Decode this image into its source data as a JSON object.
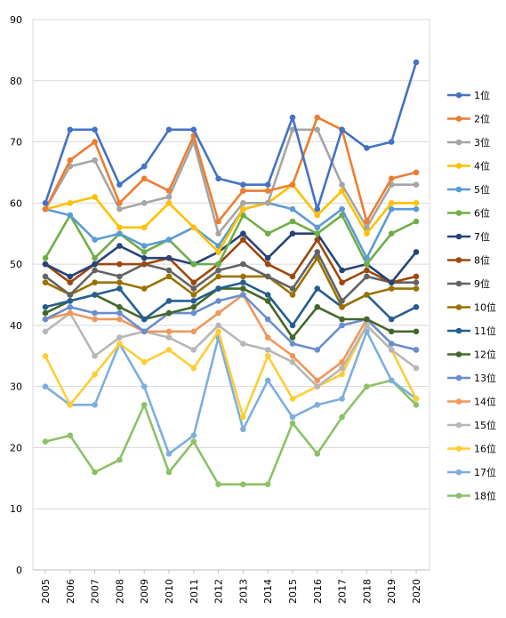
{
  "chart_data": {
    "type": "line",
    "title": "",
    "xlabel": "",
    "ylabel": "",
    "x": [
      "2005",
      "2006",
      "2007",
      "2008",
      "2009",
      "2010",
      "2011",
      "2012",
      "2013",
      "2014",
      "2015",
      "2016",
      "2017",
      "2018",
      "2019",
      "2020"
    ],
    "ylim": [
      0,
      90
    ],
    "yticks": [
      0,
      10,
      20,
      30,
      40,
      50,
      60,
      70,
      80,
      90
    ],
    "grid": "horizontal",
    "legend": "right",
    "series": [
      {
        "name": "1位",
        "color": "#4472C4",
        "values": [
          60,
          72,
          72,
          63,
          66,
          72,
          72,
          64,
          63,
          63,
          74,
          59,
          72,
          69,
          70,
          83
        ]
      },
      {
        "name": "2位",
        "color": "#ED7D31",
        "values": [
          59,
          67,
          70,
          60,
          64,
          62,
          71,
          57,
          62,
          62,
          63,
          74,
          72,
          57,
          64,
          65
        ]
      },
      {
        "name": "3位",
        "color": "#A5A5A5",
        "values": [
          59,
          66,
          67,
          59,
          60,
          61,
          70,
          55,
          60,
          60,
          72,
          72,
          63,
          56,
          63,
          63
        ]
      },
      {
        "name": "4位",
        "color": "#FFC000",
        "values": [
          59,
          60,
          61,
          56,
          56,
          60,
          56,
          52,
          59,
          60,
          63,
          58,
          62,
          55,
          60,
          60
        ]
      },
      {
        "name": "5位",
        "color": "#5B9BD5",
        "values": [
          59,
          58,
          54,
          55,
          53,
          54,
          56,
          53,
          59,
          60,
          59,
          56,
          59,
          51,
          59,
          59
        ]
      },
      {
        "name": "6位",
        "color": "#70AD47",
        "values": [
          51,
          58,
          51,
          55,
          52,
          54,
          50,
          50,
          58,
          55,
          57,
          55,
          58,
          50,
          55,
          57
        ]
      },
      {
        "name": "7位",
        "color": "#264478",
        "values": [
          50,
          48,
          50,
          53,
          51,
          51,
          50,
          52,
          55,
          51,
          55,
          55,
          49,
          50,
          47,
          52
        ]
      },
      {
        "name": "8位",
        "color": "#9E480E",
        "values": [
          50,
          47,
          50,
          50,
          50,
          51,
          47,
          50,
          54,
          50,
          48,
          54,
          47,
          49,
          47,
          48
        ]
      },
      {
        "name": "9位",
        "color": "#636363",
        "values": [
          48,
          45,
          49,
          48,
          50,
          49,
          46,
          49,
          50,
          48,
          46,
          52,
          44,
          48,
          47,
          47
        ]
      },
      {
        "name": "10位",
        "color": "#997300",
        "values": [
          47,
          45,
          47,
          47,
          46,
          48,
          45,
          48,
          48,
          48,
          45,
          51,
          43,
          45,
          46,
          46
        ]
      },
      {
        "name": "11位",
        "color": "#255E91",
        "values": [
          43,
          44,
          45,
          46,
          41,
          44,
          44,
          46,
          47,
          45,
          40,
          46,
          43,
          45,
          41,
          43
        ]
      },
      {
        "name": "12位",
        "color": "#43682B",
        "values": [
          42,
          44,
          45,
          43,
          41,
          42,
          43,
          46,
          46,
          44,
          38,
          43,
          41,
          41,
          39,
          39
        ]
      },
      {
        "name": "13位",
        "color": "#698ED0",
        "values": [
          41,
          43,
          42,
          42,
          39,
          42,
          42,
          44,
          45,
          41,
          37,
          36,
          40,
          41,
          37,
          36
        ]
      },
      {
        "name": "14位",
        "color": "#F1975A",
        "values": [
          41,
          42,
          41,
          41,
          39,
          39,
          39,
          42,
          45,
          38,
          35,
          31,
          34,
          41,
          37,
          36
        ]
      },
      {
        "name": "15位",
        "color": "#B7B7B7",
        "values": [
          39,
          42,
          35,
          38,
          39,
          38,
          36,
          40,
          37,
          36,
          34,
          30,
          33,
          40,
          36,
          33
        ]
      },
      {
        "name": "16位",
        "color": "#FFCD33",
        "values": [
          35,
          27,
          32,
          37,
          34,
          36,
          33,
          39,
          25,
          35,
          28,
          30,
          32,
          40,
          36,
          28
        ]
      },
      {
        "name": "17位",
        "color": "#7CAFDD",
        "values": [
          30,
          27,
          27,
          37,
          30,
          19,
          22,
          38,
          23,
          31,
          25,
          27,
          28,
          39,
          31,
          28
        ]
      },
      {
        "name": "18位",
        "color": "#8CC168",
        "values": [
          21,
          22,
          16,
          18,
          27,
          16,
          21,
          14,
          14,
          14,
          24,
          19,
          25,
          30,
          31,
          27
        ]
      }
    ]
  }
}
